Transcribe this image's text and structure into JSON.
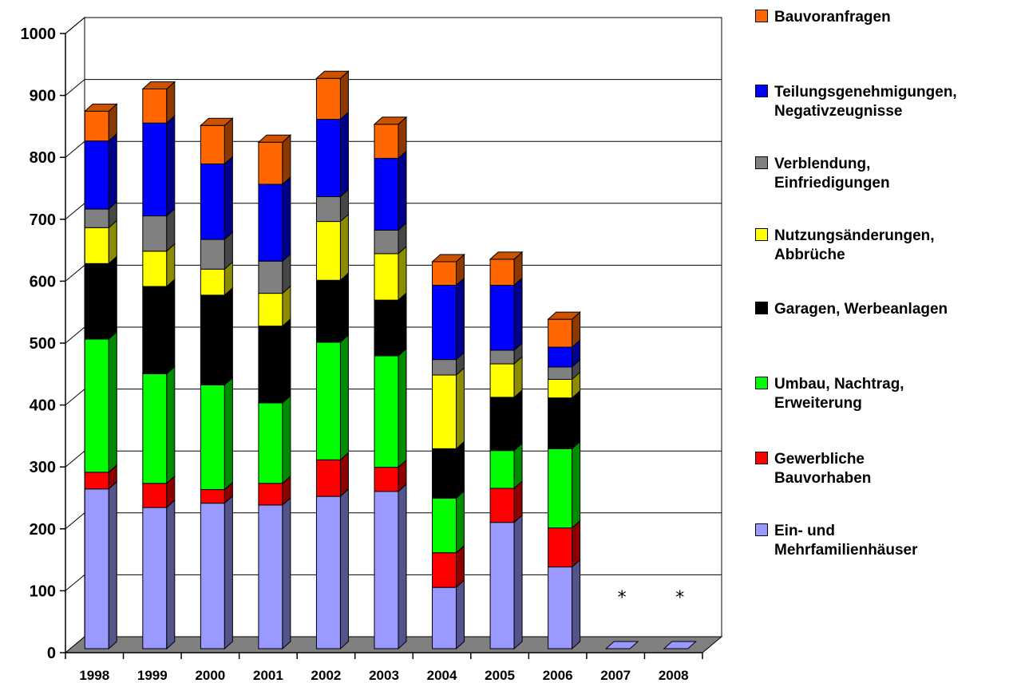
{
  "chart_data": {
    "type": "bar",
    "stacked": true,
    "three_d": true,
    "categories": [
      "1998",
      "1999",
      "2000",
      "2001",
      "2002",
      "2003",
      "2004",
      "2005",
      "2006",
      "2007",
      "2008"
    ],
    "ylim": [
      0,
      1000
    ],
    "yticks": [
      "0",
      "100",
      "200",
      "300",
      "400",
      "500",
      "600",
      "700",
      "800",
      "900",
      "1000"
    ],
    "grid": true,
    "legend_position": "right",
    "missing_marker": "*",
    "missing_categories": [
      "2007",
      "2008"
    ],
    "series": [
      {
        "name": "Ein- und\nMehrfamilienhäuser",
        "color": "#9999ff",
        "values": [
          258,
          228,
          235,
          232,
          246,
          254,
          99,
          204,
          132,
          0,
          0
        ]
      },
      {
        "name": "Gewerbliche\nBauvorhaben",
        "color": "#ff0000",
        "values": [
          27,
          39,
          22,
          35,
          59,
          39,
          56,
          55,
          63,
          0,
          0
        ]
      },
      {
        "name": "Umbau, Nachtrag,\nErweiterung",
        "color": "#00ff00",
        "values": [
          215,
          177,
          169,
          130,
          190,
          180,
          88,
          61,
          128,
          0,
          0
        ]
      },
      {
        "name": "Garagen, Werbeanlagen",
        "color": "#000000",
        "values": [
          122,
          141,
          145,
          124,
          100,
          90,
          80,
          86,
          82,
          0,
          0
        ]
      },
      {
        "name": "Nutzungsänderungen,\nAbbrüche",
        "color": "#ffff00",
        "values": [
          58,
          57,
          42,
          53,
          95,
          75,
          119,
          54,
          30,
          0,
          0
        ]
      },
      {
        "name": "Verblendung,\nEinfriedigungen",
        "color": "#808080",
        "values": [
          30,
          57,
          48,
          52,
          40,
          38,
          25,
          22,
          20,
          0,
          0
        ]
      },
      {
        "name": "Teilungsgenehmigungen,\nNegativzeugnisse",
        "color": "#0000ff",
        "values": [
          110,
          150,
          122,
          124,
          125,
          116,
          120,
          105,
          32,
          0,
          0
        ]
      },
      {
        "name": "Bauvoranfragen",
        "color": "#ff6600",
        "values": [
          48,
          55,
          62,
          68,
          66,
          55,
          38,
          42,
          45,
          0,
          0
        ]
      }
    ]
  }
}
